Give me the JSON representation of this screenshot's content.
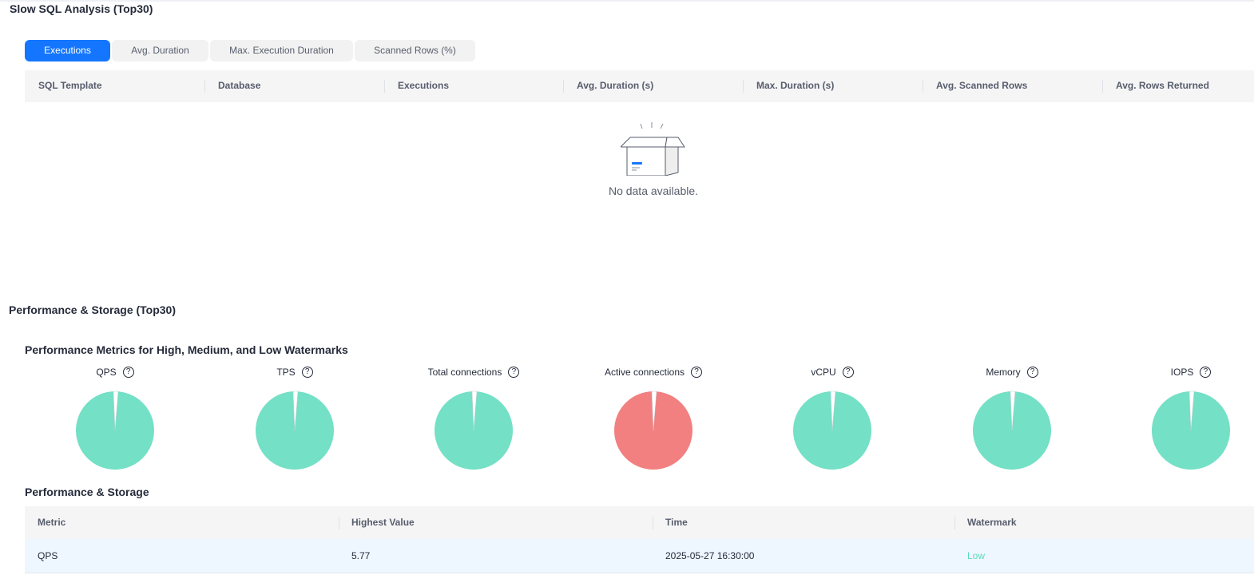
{
  "slow_sql": {
    "title": "Slow SQL Analysis (Top30)",
    "tabs": [
      {
        "label": "Executions",
        "active": true
      },
      {
        "label": "Avg. Duration",
        "active": false
      },
      {
        "label": "Max. Execution Duration",
        "active": false
      },
      {
        "label": "Scanned Rows (%)",
        "active": false
      }
    ],
    "columns": [
      "SQL Template",
      "Database",
      "Executions",
      "Avg. Duration (s)",
      "Max. Duration (s)",
      "Avg. Scanned Rows",
      "Avg. Rows Returned"
    ],
    "rows": [],
    "empty_text": "No data available."
  },
  "performance": {
    "title": "Performance & Storage (Top30)",
    "watermarks_title": "Performance Metrics for High, Medium, and Low Watermarks",
    "colors": {
      "low": "#74e0c6",
      "high": "#f28080",
      "marker": "#ffffff",
      "primary": "#1476ff"
    },
    "gauges": [
      {
        "label": "QPS",
        "level": "low"
      },
      {
        "label": "TPS",
        "level": "low"
      },
      {
        "label": "Total connections",
        "level": "low"
      },
      {
        "label": "Active connections",
        "level": "high"
      },
      {
        "label": "vCPU",
        "level": "low"
      },
      {
        "label": "Memory",
        "level": "low"
      },
      {
        "label": "IOPS",
        "level": "low"
      }
    ],
    "help_icon": "?",
    "table_title": "Performance & Storage",
    "columns": [
      "Metric",
      "Highest Value",
      "Time",
      "Watermark"
    ],
    "rows": [
      {
        "metric": "QPS",
        "highest_value": "5.77",
        "time": "2025-05-27 16:30:00",
        "watermark": "Low"
      }
    ]
  }
}
